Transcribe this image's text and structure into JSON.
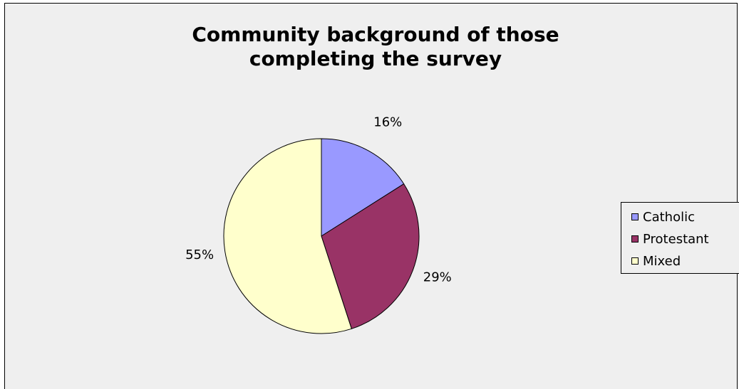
{
  "chart_data": {
    "type": "pie",
    "title": "Community background of those completing the survey",
    "categories": [
      "Catholic",
      "Protestant",
      "Mixed"
    ],
    "values": [
      16,
      29,
      55
    ],
    "value_labels": [
      "16%",
      "29%",
      "55%"
    ],
    "colors": [
      "#9999ff",
      "#993366",
      "#ffffcc"
    ],
    "start_angle_deg": 0,
    "direction": "clockwise",
    "legend_position": "right"
  }
}
